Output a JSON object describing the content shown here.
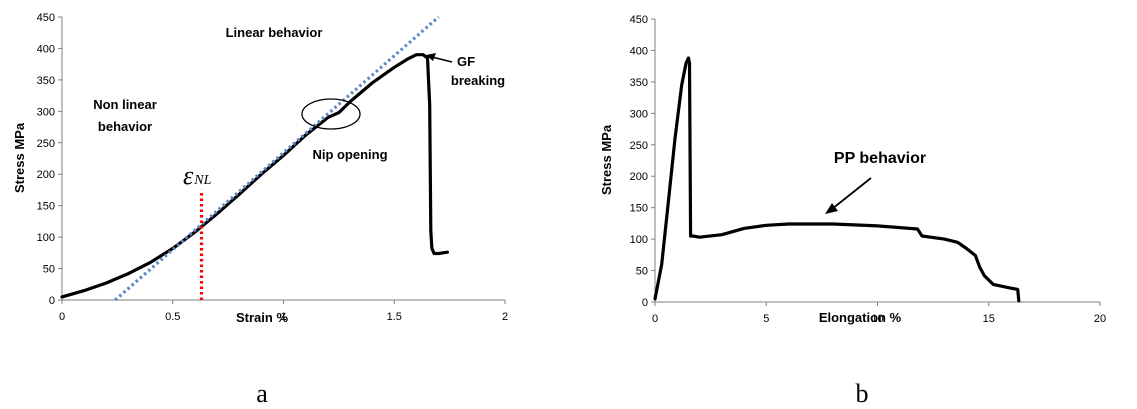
{
  "chart_data": [
    {
      "type": "line",
      "panel_label": "a",
      "xlabel": "Strain  %",
      "ylabel": "Stress MPa",
      "xlim": [
        0,
        2
      ],
      "ylim": [
        0,
        450
      ],
      "xticks": [
        0,
        0.5,
        1,
        1.5,
        2
      ],
      "yticks": [
        0,
        50,
        100,
        150,
        200,
        250,
        300,
        350,
        400,
        450
      ],
      "xtick_labels": [
        "0",
        "0.5",
        "1",
        "1.5",
        "2"
      ],
      "ytick_labels": [
        "0",
        "50",
        "100",
        "150",
        "200",
        "250",
        "300",
        "350",
        "400",
        "450"
      ],
      "grid": false,
      "series": [
        {
          "style": "solid-black",
          "x": [
            0,
            0.1,
            0.2,
            0.3,
            0.4,
            0.5,
            0.6,
            0.7,
            0.8,
            0.9,
            1.0,
            1.1,
            1.2,
            1.25,
            1.3,
            1.4,
            1.5,
            1.56,
            1.6,
            1.63,
            1.65,
            1.66,
            1.665,
            1.67,
            1.68,
            1.7,
            1.74
          ],
          "y": [
            5,
            15,
            27,
            42,
            60,
            82,
            108,
            137,
            168,
            200,
            230,
            262,
            290,
            298,
            315,
            345,
            370,
            383,
            390,
            390,
            385,
            310,
            110,
            82,
            74,
            74,
            76
          ]
        },
        {
          "style": "dotted-blue",
          "x": [
            0.24,
            1.7
          ],
          "y": [
            0,
            450
          ]
        },
        {
          "style": "dotted-red",
          "x": [
            0.63,
            0.63
          ],
          "y": [
            0,
            175
          ]
        }
      ],
      "annotations": [
        {
          "text": "Linear behavior"
        },
        {
          "text": "GF"
        },
        {
          "text": "breaking"
        },
        {
          "text": "Non linear"
        },
        {
          "text": "behavior"
        },
        {
          "text": "Nip opening"
        },
        {
          "text": "ε",
          "subscript": "NL"
        }
      ]
    },
    {
      "type": "line",
      "panel_label": "b",
      "xlabel": "Elongation %",
      "ylabel": "Stress MPa",
      "xlim": [
        0,
        20
      ],
      "ylim": [
        0,
        450
      ],
      "xticks": [
        0,
        5,
        10,
        15,
        20
      ],
      "yticks": [
        0,
        50,
        100,
        150,
        200,
        250,
        300,
        350,
        400,
        450
      ],
      "xtick_labels": [
        "0",
        "5",
        "10",
        "15",
        "20"
      ],
      "ytick_labels": [
        "0",
        "50",
        "100",
        "150",
        "200",
        "250",
        "300",
        "350",
        "400",
        "450"
      ],
      "grid": false,
      "series": [
        {
          "style": "solid-black",
          "x": [
            0,
            0.3,
            0.6,
            0.9,
            1.2,
            1.4,
            1.5,
            1.55,
            1.6,
            1.7,
            2.0,
            3.0,
            4.0,
            5.0,
            6.0,
            8.0,
            10.0,
            11.8,
            12.0,
            13.0,
            13.6,
            14.0,
            14.4,
            14.6,
            14.8,
            15.2,
            16.0,
            16.3,
            16.35
          ],
          "y": [
            5,
            60,
            160,
            260,
            345,
            380,
            388,
            380,
            105,
            105,
            103,
            107,
            117,
            122,
            124,
            124,
            121,
            116,
            105,
            100,
            95,
            85,
            74,
            55,
            42,
            28,
            22,
            20,
            2
          ]
        }
      ],
      "annotations": [
        {
          "text": "PP behavior"
        }
      ]
    }
  ]
}
